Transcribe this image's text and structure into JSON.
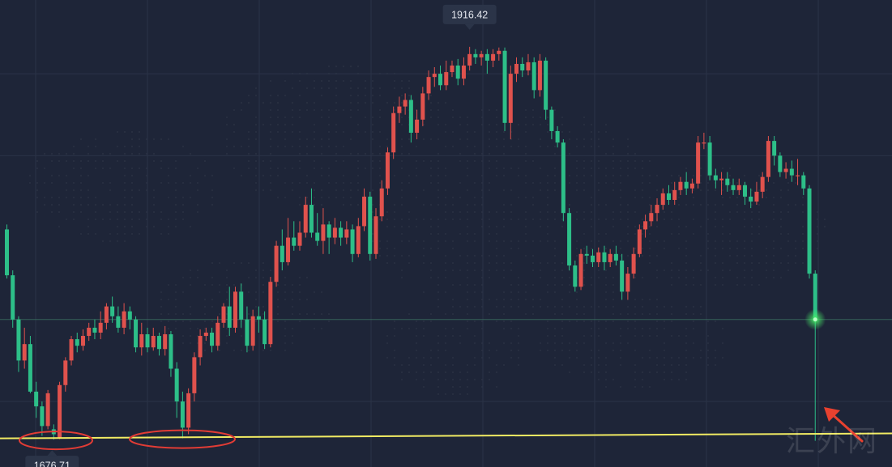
{
  "chart_data": {
    "type": "candlestick",
    "title": "",
    "xlabel": "",
    "ylabel": "",
    "ylim": [
      1660,
      1945
    ],
    "grid": true,
    "colors": {
      "background": "#1e2538",
      "up": "#e0524d",
      "down": "#2dbf88",
      "grid": "#2b3347",
      "support_line": "#f2ec63",
      "highlight": "#e23c35",
      "glow": "#48f36a",
      "callout_bg": "#2b3448"
    },
    "annotations": {
      "high_label": "1916.42",
      "low_label": "1676.71",
      "high_value": 1916.42,
      "low_value": 1676.71,
      "current_line_value": 1750,
      "support_line": {
        "from_value": 1677.5,
        "to_value": 1680.5
      },
      "highlighted_lows": [
        1676.71,
        1677.5
      ],
      "marker_value": 1750
    },
    "candles": [
      [
        1805,
        1777,
        1808,
        1775
      ],
      [
        1777,
        1750,
        1780,
        1745
      ],
      [
        1750,
        1725,
        1752,
        1718
      ],
      [
        1725,
        1735,
        1745,
        1720
      ],
      [
        1735,
        1706,
        1740,
        1705
      ],
      [
        1706,
        1697,
        1712,
        1690
      ],
      [
        1697,
        1685,
        1700,
        1679
      ],
      [
        1685,
        1705,
        1707,
        1683
      ],
      [
        1683,
        1680,
        1686,
        1676.71
      ],
      [
        1678,
        1710,
        1712,
        1677
      ],
      [
        1710,
        1725,
        1727,
        1706
      ],
      [
        1725,
        1738,
        1740,
        1722
      ],
      [
        1738,
        1734,
        1742,
        1730
      ],
      [
        1734,
        1740,
        1744,
        1731
      ],
      [
        1740,
        1745,
        1748,
        1737
      ],
      [
        1745,
        1742,
        1750,
        1738
      ],
      [
        1742,
        1748,
        1755,
        1738
      ],
      [
        1748,
        1758,
        1760,
        1744
      ],
      [
        1758,
        1752,
        1764,
        1748
      ],
      [
        1752,
        1745,
        1758,
        1742
      ],
      [
        1745,
        1755,
        1760,
        1741
      ],
      [
        1755,
        1750,
        1758,
        1744
      ],
      [
        1750,
        1733,
        1752,
        1730
      ],
      [
        1733,
        1741,
        1748,
        1728
      ],
      [
        1741,
        1733,
        1745,
        1730
      ],
      [
        1733,
        1740,
        1745,
        1731
      ],
      [
        1740,
        1732,
        1742,
        1728
      ],
      [
        1732,
        1741,
        1746,
        1728
      ],
      [
        1741,
        1720,
        1743,
        1715
      ],
      [
        1720,
        1700,
        1724,
        1690
      ],
      [
        1700,
        1684,
        1706,
        1677.5
      ],
      [
        1684,
        1705,
        1708,
        1680
      ],
      [
        1705,
        1727,
        1730,
        1700
      ],
      [
        1727,
        1740,
        1744,
        1722
      ],
      [
        1740,
        1742,
        1745,
        1737
      ],
      [
        1742,
        1734,
        1745,
        1730
      ],
      [
        1734,
        1748,
        1752,
        1731
      ],
      [
        1748,
        1758,
        1760,
        1745
      ],
      [
        1758,
        1745,
        1770,
        1740
      ],
      [
        1745,
        1767,
        1770,
        1742
      ],
      [
        1767,
        1750,
        1772,
        1745
      ],
      [
        1750,
        1734,
        1758,
        1730
      ],
      [
        1734,
        1752,
        1756,
        1731
      ],
      [
        1752,
        1750,
        1758,
        1742
      ],
      [
        1750,
        1735,
        1755,
        1732
      ],
      [
        1735,
        1773,
        1776,
        1733
      ],
      [
        1773,
        1795,
        1798,
        1770
      ],
      [
        1795,
        1785,
        1805,
        1780
      ],
      [
        1785,
        1800,
        1812,
        1783
      ],
      [
        1800,
        1795,
        1810,
        1792
      ],
      [
        1795,
        1803,
        1810,
        1792
      ],
      [
        1803,
        1820,
        1825,
        1800
      ],
      [
        1820,
        1803,
        1830,
        1800
      ],
      [
        1803,
        1798,
        1815,
        1795
      ],
      [
        1798,
        1808,
        1818,
        1790
      ],
      [
        1808,
        1800,
        1810,
        1790
      ],
      [
        1800,
        1806,
        1812,
        1796
      ],
      [
        1806,
        1800,
        1810,
        1795
      ],
      [
        1800,
        1805,
        1810,
        1796
      ],
      [
        1805,
        1790,
        1808,
        1785
      ],
      [
        1790,
        1807,
        1812,
        1788
      ],
      [
        1807,
        1825,
        1830,
        1804
      ],
      [
        1825,
        1790,
        1828,
        1786
      ],
      [
        1790,
        1813,
        1818,
        1787
      ],
      [
        1813,
        1830,
        1835,
        1810
      ],
      [
        1830,
        1852,
        1855,
        1826
      ],
      [
        1852,
        1876,
        1880,
        1848
      ],
      [
        1876,
        1880,
        1886,
        1870
      ],
      [
        1880,
        1884,
        1888,
        1875
      ],
      [
        1884,
        1864,
        1887,
        1858
      ],
      [
        1864,
        1872,
        1878,
        1860
      ],
      [
        1872,
        1888,
        1892,
        1868
      ],
      [
        1888,
        1898,
        1902,
        1884
      ],
      [
        1898,
        1900,
        1904,
        1892
      ],
      [
        1900,
        1893,
        1905,
        1890
      ],
      [
        1893,
        1901,
        1908,
        1890
      ],
      [
        1901,
        1905,
        1908,
        1898
      ],
      [
        1905,
        1897,
        1909,
        1893
      ],
      [
        1897,
        1905,
        1910,
        1893
      ],
      [
        1905,
        1912,
        1916.42,
        1902
      ],
      [
        1912,
        1910,
        1915,
        1906
      ],
      [
        1910,
        1912,
        1914,
        1905
      ],
      [
        1912,
        1908,
        1915,
        1900
      ],
      [
        1908,
        1912,
        1915,
        1904
      ],
      [
        1912,
        1914,
        1916,
        1908
      ],
      [
        1914,
        1870,
        1916,
        1865
      ],
      [
        1870,
        1900,
        1905,
        1860
      ],
      [
        1900,
        1906,
        1910,
        1895
      ],
      [
        1906,
        1902,
        1910,
        1898
      ],
      [
        1902,
        1907,
        1912,
        1899
      ],
      [
        1907,
        1890,
        1910,
        1885
      ],
      [
        1890,
        1908,
        1912,
        1886
      ],
      [
        1908,
        1878,
        1910,
        1872
      ],
      [
        1878,
        1865,
        1880,
        1860
      ],
      [
        1865,
        1858,
        1868,
        1855
      ],
      [
        1858,
        1815,
        1860,
        1810
      ],
      [
        1815,
        1783,
        1818,
        1780
      ],
      [
        1783,
        1770,
        1786,
        1767
      ],
      [
        1770,
        1790,
        1793,
        1768
      ],
      [
        1790,
        1789,
        1795,
        1784
      ],
      [
        1789,
        1785,
        1793,
        1782
      ],
      [
        1785,
        1791,
        1794,
        1782
      ],
      [
        1791,
        1785,
        1795,
        1780
      ],
      [
        1785,
        1790,
        1793,
        1782
      ],
      [
        1790,
        1786,
        1795,
        1783
      ],
      [
        1786,
        1767,
        1790,
        1762
      ],
      [
        1767,
        1778,
        1782,
        1762
      ],
      [
        1778,
        1790,
        1794,
        1775
      ],
      [
        1790,
        1805,
        1808,
        1788
      ],
      [
        1805,
        1810,
        1814,
        1800
      ],
      [
        1810,
        1815,
        1820,
        1807
      ],
      [
        1815,
        1820,
        1824,
        1810
      ],
      [
        1820,
        1827,
        1830,
        1817
      ],
      [
        1827,
        1823,
        1832,
        1820
      ],
      [
        1823,
        1829,
        1834,
        1820
      ],
      [
        1829,
        1834,
        1837,
        1826
      ],
      [
        1834,
        1830,
        1840,
        1826
      ],
      [
        1830,
        1833,
        1836,
        1827
      ],
      [
        1833,
        1858,
        1862,
        1830
      ],
      [
        1858,
        1858,
        1864,
        1854
      ],
      [
        1858,
        1838,
        1862,
        1835
      ],
      [
        1838,
        1835,
        1842,
        1830
      ],
      [
        1835,
        1836,
        1840,
        1826
      ],
      [
        1836,
        1832,
        1840,
        1828
      ],
      [
        1832,
        1829,
        1836,
        1826
      ],
      [
        1829,
        1832,
        1836,
        1826
      ],
      [
        1832,
        1825,
        1834,
        1820
      ],
      [
        1825,
        1822,
        1830,
        1818
      ],
      [
        1822,
        1828,
        1834,
        1820
      ],
      [
        1828,
        1837,
        1840,
        1824
      ],
      [
        1837,
        1859,
        1862,
        1834
      ],
      [
        1859,
        1850,
        1862,
        1844
      ],
      [
        1850,
        1840,
        1852,
        1837
      ],
      [
        1840,
        1842,
        1846,
        1836
      ],
      [
        1842,
        1838,
        1847,
        1834
      ],
      [
        1838,
        1838,
        1848,
        1832
      ],
      [
        1838,
        1830,
        1840,
        1826
      ],
      [
        1830,
        1778,
        1832,
        1775
      ],
      [
        1778,
        1750,
        1780,
        1676
      ]
    ]
  },
  "watermark": "汇外网"
}
